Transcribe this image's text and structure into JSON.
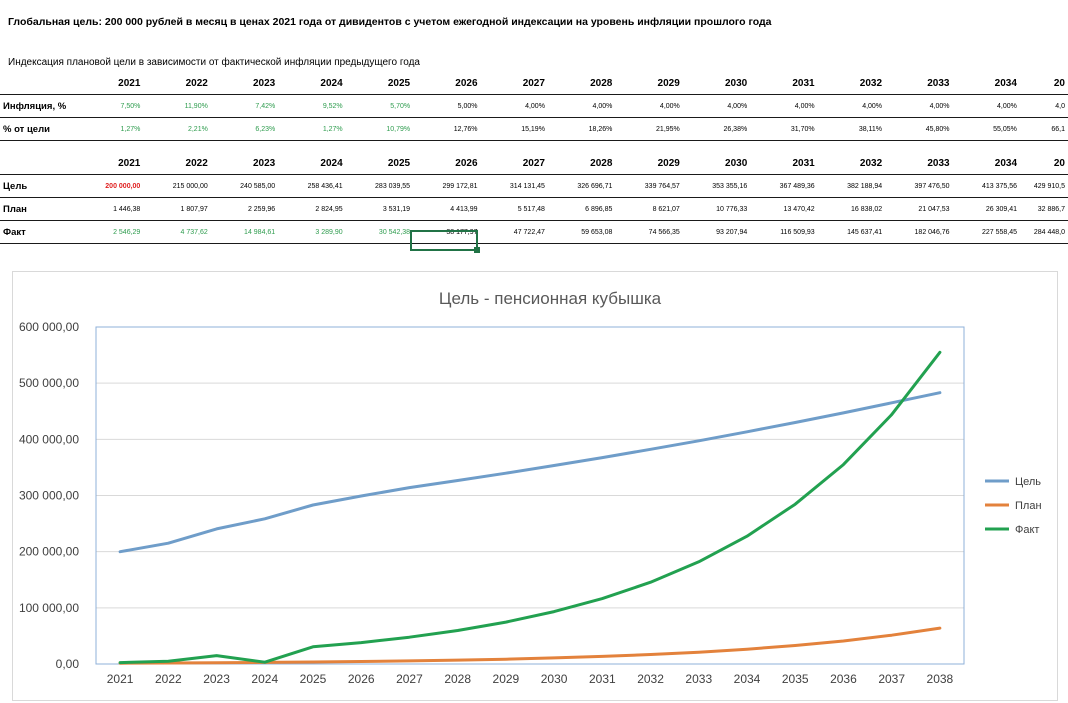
{
  "sheet": {
    "title": "Глобальная цель: 200 000 рублей в месяц в ценах 2021 года от дивидентов с учетом ежегодной индексации на уровень инфляции прошлого года",
    "subtitle": "Индексация плановой цели в зависимости от фактической инфляции предыдущего года",
    "years": [
      "2021",
      "2022",
      "2023",
      "2024",
      "2025",
      "2026",
      "2027",
      "2028",
      "2029",
      "2030",
      "2031",
      "2032",
      "2033",
      "2034",
      "20"
    ],
    "table1": {
      "rows": [
        {
          "label": "Инфляция, %",
          "values": [
            "7,50%",
            "11,90%",
            "7,42%",
            "9,52%",
            "5,70%",
            "5,00%",
            "4,00%",
            "4,00%",
            "4,00%",
            "4,00%",
            "4,00%",
            "4,00%",
            "4,00%",
            "4,00%",
            "4,0"
          ]
        },
        {
          "label": "% от цели",
          "values": [
            "1,27%",
            "2,21%",
            "6,23%",
            "1,27%",
            "10,79%",
            "12,76%",
            "15,19%",
            "18,26%",
            "21,95%",
            "26,38%",
            "31,70%",
            "38,11%",
            "45,80%",
            "55,05%",
            "66,1"
          ]
        }
      ]
    },
    "table2": {
      "rows": [
        {
          "label": "Цель",
          "values": [
            "200 000,00",
            "215 000,00",
            "240 585,00",
            "258 436,41",
            "283 039,55",
            "299 172,81",
            "314 131,45",
            "326 696,71",
            "339 764,57",
            "353 355,16",
            "367 489,36",
            "382 188,94",
            "397 476,50",
            "413 375,56",
            "429 910,5"
          ]
        },
        {
          "label": "План",
          "values": [
            "1 446,38",
            "1 807,97",
            "2 259,96",
            "2 824,95",
            "3 531,19",
            "4 413,99",
            "5 517,48",
            "6 896,85",
            "8 621,07",
            "10 776,33",
            "13 470,42",
            "16 838,02",
            "21 047,53",
            "26 309,41",
            "32 886,7"
          ]
        },
        {
          "label": "Факт",
          "values": [
            "2 546,29",
            "4 737,62",
            "14 984,61",
            "3 289,90",
            "30 542,38",
            "38 177,97",
            "47 722,47",
            "59 653,08",
            "74 566,35",
            "93 207,94",
            "116 509,93",
            "145 637,41",
            "182 046,76",
            "227 558,45",
            "284 448,0"
          ]
        }
      ]
    }
  },
  "chart_data": {
    "type": "line",
    "title": "Цель - пенсионная кубышка",
    "x": [
      "2021",
      "2022",
      "2023",
      "2024",
      "2025",
      "2026",
      "2027",
      "2028",
      "2029",
      "2030",
      "2031",
      "2032",
      "2033",
      "2034",
      "2035",
      "2036",
      "2037",
      "2038"
    ],
    "ylim": [
      0,
      600000
    ],
    "yticks": [
      0,
      100000,
      200000,
      300000,
      400000,
      500000,
      600000
    ],
    "ytick_labels": [
      "0,00",
      "100 000,00",
      "200 000,00",
      "300 000,00",
      "400 000,00",
      "500 000,00",
      "600 000,00"
    ],
    "grid": true,
    "legend": "right",
    "series": [
      {
        "name": "Цель",
        "color": "#6f9dc9",
        "values": [
          200000,
          215000,
          240585,
          258436,
          283040,
          299173,
          314131,
          326697,
          339765,
          353355,
          367489,
          382189,
          397477,
          413376,
          429911,
          447000,
          465000,
          483000
        ]
      },
      {
        "name": "План",
        "color": "#e3823c",
        "values": [
          1446,
          1808,
          2260,
          2825,
          3531,
          4414,
          5517,
          6897,
          8621,
          10776,
          13470,
          16838,
          21048,
          26309,
          32887,
          41000,
          51300,
          64000
        ]
      },
      {
        "name": "Факт",
        "color": "#22a150",
        "values": [
          2546,
          4738,
          14985,
          3290,
          30542,
          38178,
          47722,
          59653,
          74566,
          93208,
          116510,
          145637,
          182047,
          227558,
          284448,
          355000,
          444000,
          555000
        ]
      }
    ]
  }
}
